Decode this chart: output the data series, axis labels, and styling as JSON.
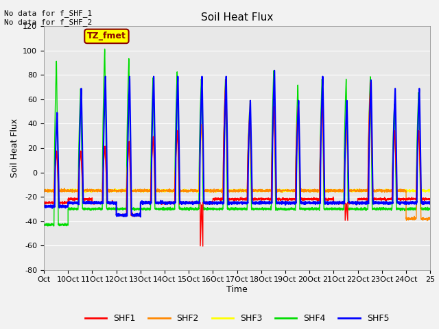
{
  "title": "Soil Heat Flux",
  "ylabel": "Soil Heat Flux",
  "xlabel": "Time",
  "ylim": [
    -80,
    120
  ],
  "xlim": [
    0.0,
    16.0
  ],
  "xtick_labels": [
    "Oct",
    "10Oct",
    "11Oct",
    "12Oct",
    "13Oct",
    "14Oct",
    "15Oct",
    "16Oct",
    "17Oct",
    "18Oct",
    "19Oct",
    "20Oct",
    "21Oct",
    "22Oct",
    "23Oct",
    "24Oct",
    "25"
  ],
  "xtick_positions": [
    0,
    1,
    2,
    3,
    4,
    5,
    6,
    7,
    8,
    9,
    10,
    11,
    12,
    13,
    14,
    15,
    16
  ],
  "ytick_positions": [
    -80,
    -60,
    -40,
    -20,
    0,
    20,
    40,
    60,
    80,
    100,
    120
  ],
  "annotation_text": "No data for f_SHF_1\nNo data for f_SHF_2",
  "legend_text": "TZ_fmet",
  "colors": {
    "SHF1": "#ff0000",
    "SHF2": "#ff8800",
    "SHF3": "#ffff00",
    "SHF4": "#00dd00",
    "SHF5": "#0000ff"
  },
  "bg_color": "#e8e8e8",
  "bg_outer": "#f2f2f2",
  "figsize": [
    6.4,
    4.8
  ],
  "dpi": 100,
  "shf5_peaks": [
    50,
    70,
    80,
    80,
    80,
    80,
    80,
    80,
    60,
    85,
    60,
    80,
    60,
    77,
    70,
    70
  ],
  "shf4_peaks": [
    93,
    70,
    103,
    95,
    79,
    84,
    78,
    78,
    52,
    85,
    73,
    78,
    78,
    80,
    57,
    67
  ],
  "shf3_peaks": [
    18,
    18,
    22,
    26,
    30,
    35,
    40,
    77,
    60,
    55,
    55,
    60,
    35,
    75,
    35,
    35
  ],
  "shf2_peaks": [
    18,
    18,
    22,
    26,
    30,
    35,
    40,
    77,
    50,
    55,
    55,
    60,
    35,
    75,
    35,
    35
  ],
  "shf1_peaks": [
    18,
    18,
    22,
    26,
    30,
    35,
    -62,
    77,
    50,
    55,
    55,
    60,
    -40,
    75,
    35,
    35
  ],
  "shf5_trough": [
    -28,
    -25,
    -25,
    -35,
    -25,
    -25,
    -25,
    -25,
    -25,
    -25,
    -25,
    -25,
    -25,
    -25,
    -25,
    -25
  ],
  "shf4_trough": [
    -43,
    -30,
    -30,
    -30,
    -30,
    -30,
    -30,
    -30,
    -30,
    -30,
    -30,
    -30,
    -30,
    -30,
    -30,
    -30
  ],
  "shf3_trough": [
    -15,
    -15,
    -15,
    -15,
    -15,
    -15,
    -15,
    -15,
    -15,
    -15,
    -15,
    -15,
    -15,
    -15,
    -15,
    -15
  ],
  "shf2_trough": [
    -15,
    -15,
    -15,
    -15,
    -15,
    -15,
    -15,
    -15,
    -15,
    -15,
    -15,
    -15,
    -15,
    -15,
    -15,
    -38
  ],
  "shf1_trough": [
    -25,
    -22,
    -25,
    -35,
    -25,
    -25,
    -25,
    -22,
    -22,
    -22,
    -22,
    -22,
    -25,
    -22,
    -22,
    -22
  ]
}
